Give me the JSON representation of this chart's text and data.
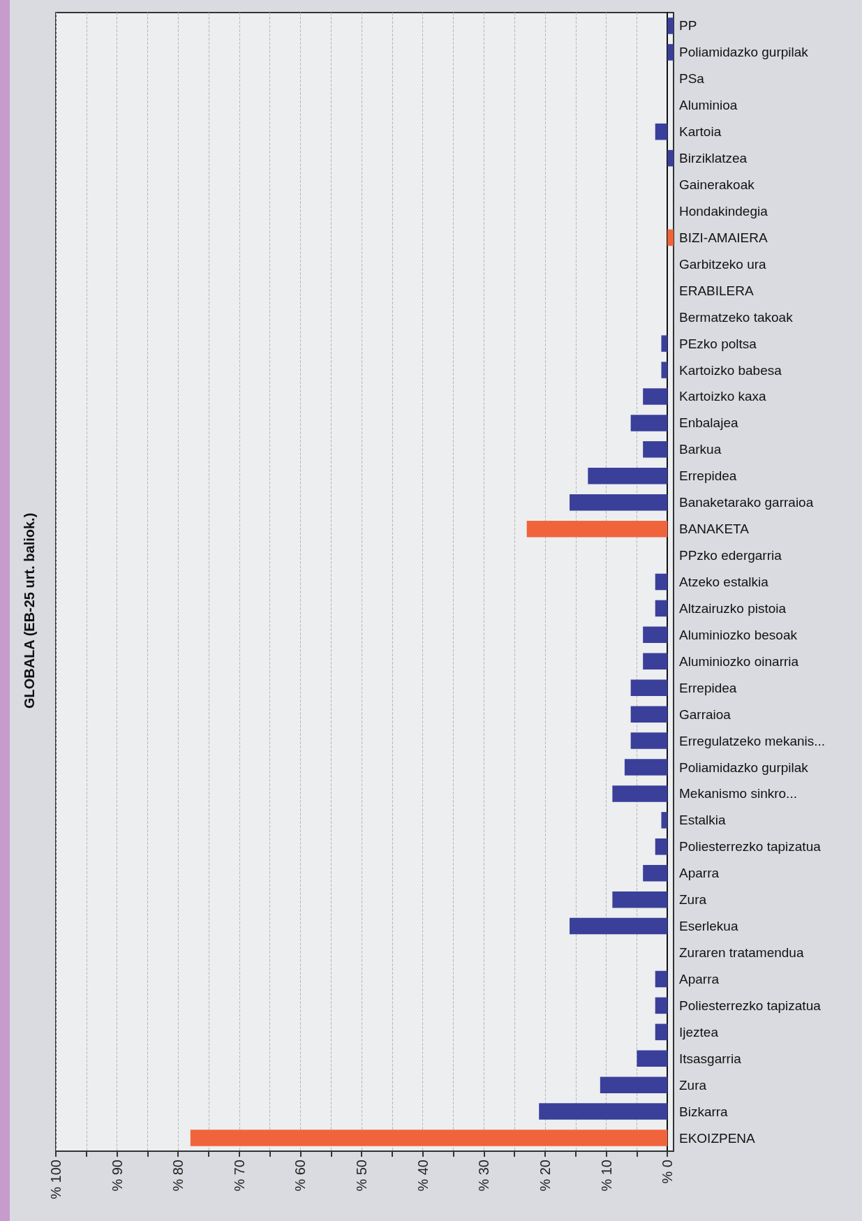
{
  "chart_data": {
    "type": "bar",
    "orientation": "horizontal",
    "ylabel": "GLOBALA (EB-25 urt. baliok.)",
    "categories": [
      "PP",
      "Poliamidazko gurpilak",
      "PSa",
      "Aluminioa",
      "Kartoia",
      "Birziklatzea",
      "Gainerakoak",
      "Hondakindegia",
      "BIZI-AMAIERA",
      "Garbitzeko ura",
      "ERABILERA",
      "Bermatzeko takoak",
      "PEzko poltsa",
      "Kartoizko babesa",
      "Kartoizko kaxa",
      "Enbalajea",
      "Barkua",
      "Errepidea",
      "Banaketarako garraioa",
      "BANAKETA",
      "PPzko edergarria",
      "Atzeko estalkia",
      "Altzairuzko pistoia",
      "Aluminiozko besoak",
      "Aluminiozko oinarria",
      "Errepidea",
      "Garraioa",
      "Erregulatzeko mekanis...",
      "Poliamidazko gurpilak",
      "Mekanismo sinkro...",
      "Estalkia",
      "Poliesterrezko tapizatua",
      "Aparra",
      "Zura",
      "Eserlekua",
      "Zuraren tratamendua",
      "Aparra",
      "Poliesterrezko tapizatua",
      "Ijeztea",
      "Itsasgarria",
      "Zura",
      "Bizkarra",
      "EKOIZPENA"
    ],
    "values": [
      -1,
      -1,
      0,
      0,
      2,
      -1,
      0,
      0,
      -1,
      0,
      0,
      0,
      1,
      1,
      4,
      6,
      4,
      13,
      16,
      23,
      0,
      2,
      2,
      4,
      4,
      6,
      6,
      6,
      7,
      9,
      1,
      2,
      4,
      9,
      16,
      0,
      2,
      2,
      2,
      5,
      11,
      21,
      78
    ],
    "colors": [
      "#3a3f9a",
      "#3a3f9a",
      "#3a3f9a",
      "#3a3f9a",
      "#3a3f9a",
      "#3a3f9a",
      "#3a3f9a",
      "#3a3f9a",
      "#f0643c",
      "#3a3f9a",
      "#f0643c",
      "#3a3f9a",
      "#3a3f9a",
      "#3a3f9a",
      "#3a3f9a",
      "#3a3f9a",
      "#3a3f9a",
      "#3a3f9a",
      "#3a3f9a",
      "#f0643c",
      "#3a3f9a",
      "#3a3f9a",
      "#3a3f9a",
      "#3a3f9a",
      "#3a3f9a",
      "#3a3f9a",
      "#3a3f9a",
      "#3a3f9a",
      "#3a3f9a",
      "#3a3f9a",
      "#3a3f9a",
      "#3a3f9a",
      "#3a3f9a",
      "#3a3f9a",
      "#3a3f9a",
      "#3a3f9a",
      "#3a3f9a",
      "#3a3f9a",
      "#3a3f9a",
      "#3a3f9a",
      "#3a3f9a",
      "#3a3f9a",
      "#f0643c"
    ],
    "xlim": [
      100,
      -1
    ],
    "xticks": [
      {
        "value": 100,
        "label": "% 100"
      },
      {
        "value": 95,
        "label": null
      },
      {
        "value": 90,
        "label": "% 90"
      },
      {
        "value": 85,
        "label": null
      },
      {
        "value": 80,
        "label": "% 80"
      },
      {
        "value": 75,
        "label": null
      },
      {
        "value": 70,
        "label": "% 70"
      },
      {
        "value": 65,
        "label": null
      },
      {
        "value": 60,
        "label": "% 60"
      },
      {
        "value": 55,
        "label": null
      },
      {
        "value": 50,
        "label": "% 50"
      },
      {
        "value": 45,
        "label": null
      },
      {
        "value": 40,
        "label": "% 40"
      },
      {
        "value": 35,
        "label": null
      },
      {
        "value": 30,
        "label": "% 30"
      },
      {
        "value": 25,
        "label": null
      },
      {
        "value": 20,
        "label": "% 20"
      },
      {
        "value": 15,
        "label": null
      },
      {
        "value": 10,
        "label": "% 10"
      },
      {
        "value": 5,
        "label": null
      },
      {
        "value": 0,
        "label": "% 0"
      }
    ],
    "grid": "x"
  }
}
